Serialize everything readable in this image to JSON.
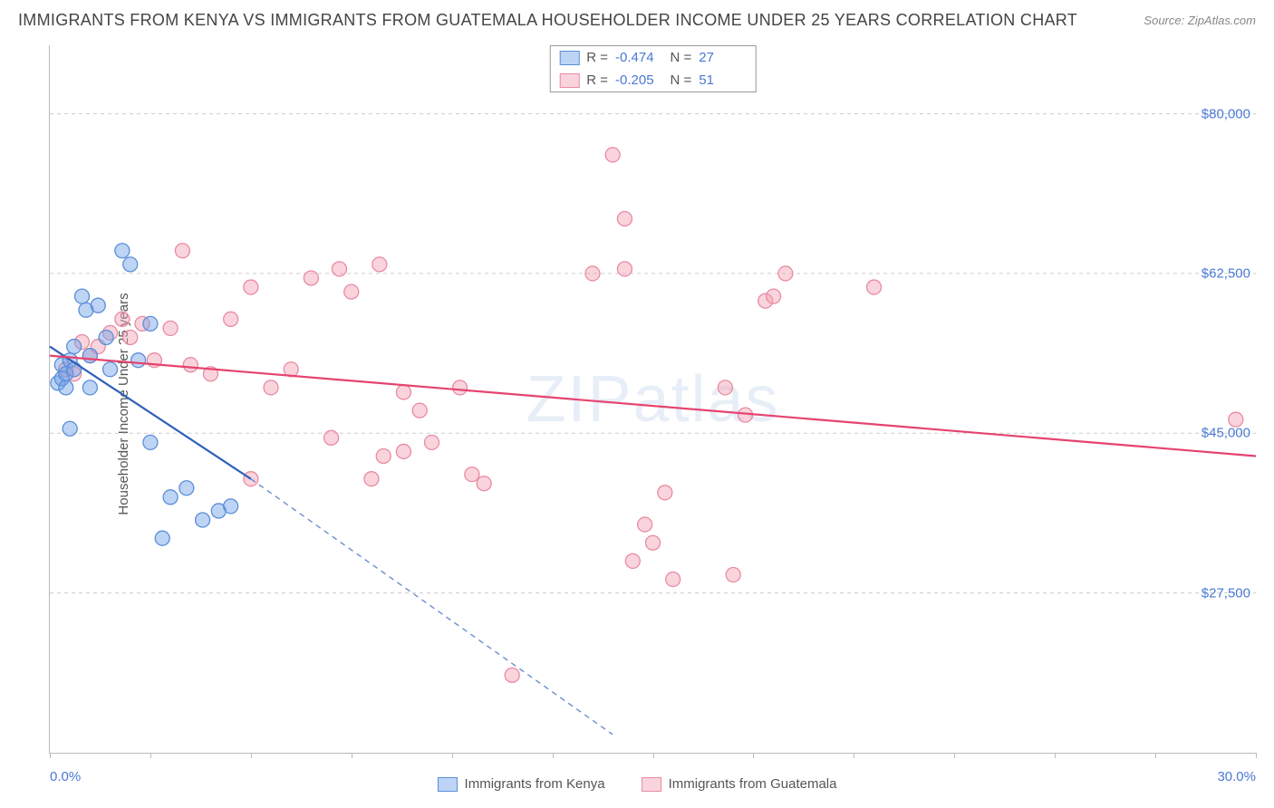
{
  "header": {
    "title": "IMMIGRANTS FROM KENYA VS IMMIGRANTS FROM GUATEMALA HOUSEHOLDER INCOME UNDER 25 YEARS CORRELATION CHART",
    "source_label": "Source:",
    "source_value": "ZipAtlas.com"
  },
  "chart": {
    "type": "scatter",
    "ylabel": "Householder Income Under 25 years",
    "xlim": [
      0,
      30
    ],
    "ylim": [
      10000,
      87500
    ],
    "x_tick_min": "0.0%",
    "x_tick_max": "30.0%",
    "x_tick_positions": [
      0,
      2.5,
      5,
      7.5,
      10,
      12.5,
      15,
      17.5,
      20,
      22.5,
      25,
      27.5,
      30
    ],
    "y_ticks": [
      {
        "v": 27500,
        "label": "$27,500"
      },
      {
        "v": 45000,
        "label": "$45,000"
      },
      {
        "v": 62500,
        "label": "$62,500"
      },
      {
        "v": 80000,
        "label": "$80,000"
      }
    ],
    "watermark": "ZIPatlas",
    "background_color": "#ffffff",
    "grid_color": "#cccccc",
    "axis_color": "#bbbbbb",
    "label_color": "#4a78d6",
    "marker_radius": 8,
    "marker_opacity": 0.55,
    "line_width": 2.2
  },
  "series": {
    "kenya": {
      "label": "Immigrants from Kenya",
      "color": "#6fa0e8",
      "fill": "rgba(111,160,232,0.45)",
      "stroke": "#5a8fd8",
      "line_color": "#2f5fb8",
      "R": "-0.474",
      "N": "27",
      "points": [
        [
          0.2,
          50500
        ],
        [
          0.3,
          51000
        ],
        [
          0.3,
          52500
        ],
        [
          0.4,
          50000
        ],
        [
          0.4,
          51500
        ],
        [
          0.5,
          53000
        ],
        [
          0.6,
          52000
        ],
        [
          0.6,
          54500
        ],
        [
          0.8,
          60000
        ],
        [
          0.9,
          58500
        ],
        [
          1.0,
          53500
        ],
        [
          1.2,
          59000
        ],
        [
          1.4,
          55500
        ],
        [
          1.8,
          65000
        ],
        [
          2.0,
          63500
        ],
        [
          0.5,
          45500
        ],
        [
          1.0,
          50000
        ],
        [
          1.5,
          52000
        ],
        [
          2.2,
          53000
        ],
        [
          2.5,
          57000
        ],
        [
          2.5,
          44000
        ],
        [
          3.0,
          38000
        ],
        [
          3.4,
          39000
        ],
        [
          3.8,
          35500
        ],
        [
          4.2,
          36500
        ],
        [
          4.5,
          37000
        ],
        [
          2.8,
          33500
        ]
      ],
      "trend": {
        "x1": 0,
        "y1": 54500,
        "x2": 5,
        "y2": 40000,
        "dash_x2": 14,
        "dash_y2": 12000
      }
    },
    "guatemala": {
      "label": "Immigrants from Guatemala",
      "color": "#f5a0b3",
      "fill": "rgba(245,160,179,0.45)",
      "stroke": "#e98ba1",
      "line_color": "#e6436f",
      "R": "-0.205",
      "N": "51",
      "points": [
        [
          0.4,
          52000
        ],
        [
          0.6,
          51500
        ],
        [
          0.8,
          55000
        ],
        [
          1.0,
          53500
        ],
        [
          1.2,
          54500
        ],
        [
          1.5,
          56000
        ],
        [
          1.8,
          57500
        ],
        [
          2.0,
          55500
        ],
        [
          2.3,
          57000
        ],
        [
          2.6,
          53000
        ],
        [
          3.0,
          56500
        ],
        [
          3.3,
          65000
        ],
        [
          3.5,
          52500
        ],
        [
          4.0,
          51500
        ],
        [
          4.5,
          57500
        ],
        [
          5.0,
          61000
        ],
        [
          5.5,
          50000
        ],
        [
          6.0,
          52000
        ],
        [
          6.5,
          62000
        ],
        [
          5.0,
          40000
        ],
        [
          7.2,
          63000
        ],
        [
          7.5,
          60500
        ],
        [
          8.2,
          63500
        ],
        [
          8.8,
          49500
        ],
        [
          9.5,
          44000
        ],
        [
          8.0,
          40000
        ],
        [
          8.3,
          42500
        ],
        [
          8.8,
          43000
        ],
        [
          9.2,
          47500
        ],
        [
          10.5,
          40500
        ],
        [
          10.2,
          50000
        ],
        [
          10.8,
          39500
        ],
        [
          11.5,
          18500
        ],
        [
          13.5,
          62500
        ],
        [
          14.0,
          75500
        ],
        [
          14.3,
          63000
        ],
        [
          14.5,
          31000
        ],
        [
          14.8,
          35000
        ],
        [
          15.0,
          33000
        ],
        [
          15.3,
          38500
        ],
        [
          15.5,
          29000
        ],
        [
          14.3,
          68500
        ],
        [
          16.8,
          50000
        ],
        [
          17.0,
          29500
        ],
        [
          17.3,
          47000
        ],
        [
          17.8,
          59500
        ],
        [
          18.0,
          60000
        ],
        [
          18.3,
          62500
        ],
        [
          20.5,
          61000
        ],
        [
          29.5,
          46500
        ],
        [
          7.0,
          44500
        ]
      ],
      "trend": {
        "x1": 0,
        "y1": 53500,
        "x2": 30,
        "y2": 42500
      }
    }
  },
  "stats_legend": {
    "r_label": "R =",
    "n_label": "N ="
  }
}
